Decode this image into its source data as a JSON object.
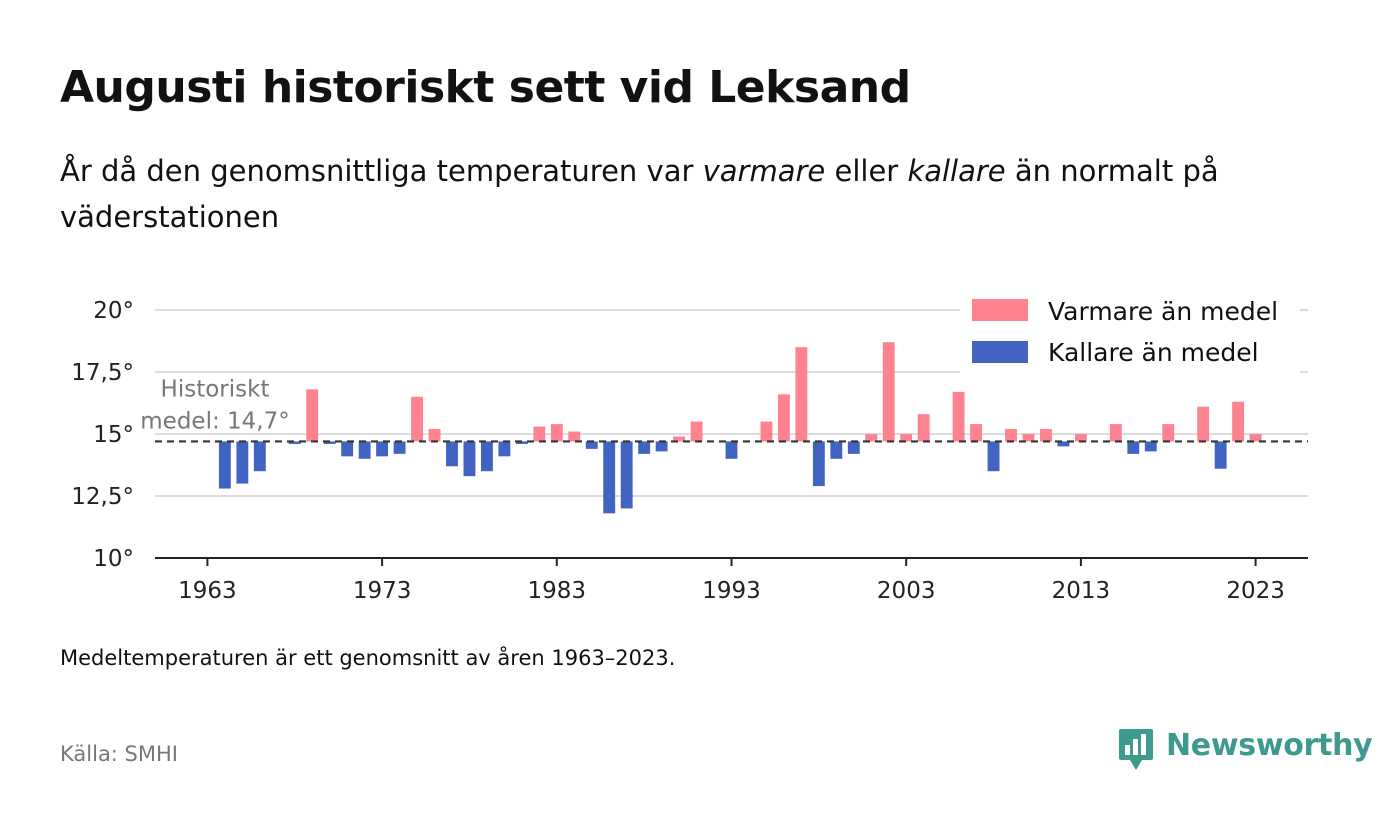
{
  "header": {
    "title": "Augusti historiskt sett vid Leksand",
    "subtitle_part1": "År då den genomsnittliga temperaturen var ",
    "subtitle_em1": "varmare",
    "subtitle_part2": " eller ",
    "subtitle_em2": "kallare",
    "subtitle_part3": " än normalt på väderstationen"
  },
  "chart_data": {
    "type": "bar",
    "baseline": 14.7,
    "ylim": [
      10,
      20
    ],
    "yticks": [
      10,
      12.5,
      15,
      17.5,
      20
    ],
    "ytick_labels": [
      "10°",
      "12,5°",
      "15°",
      "17,5°",
      "20°"
    ],
    "xticks": [
      1963,
      1973,
      1983,
      1993,
      2003,
      2013,
      2023
    ],
    "x_range": [
      1960,
      2026
    ],
    "grid": true,
    "legend_position": "top-right",
    "annotation": {
      "line1": "Historiskt",
      "line2": "medel: 14,7°"
    },
    "series": [
      {
        "name": "Varmare än medel",
        "color": "#ff8290"
      },
      {
        "name": "Kallare än medel",
        "color": "#4163c2"
      }
    ],
    "years": [
      1963,
      1964,
      1965,
      1966,
      1967,
      1968,
      1969,
      1970,
      1971,
      1972,
      1973,
      1974,
      1975,
      1976,
      1977,
      1978,
      1979,
      1980,
      1981,
      1982,
      1983,
      1984,
      1985,
      1986,
      1987,
      1988,
      1989,
      1990,
      1991,
      1992,
      1993,
      1994,
      1995,
      1996,
      1997,
      1998,
      1999,
      2000,
      2001,
      2002,
      2003,
      2004,
      2005,
      2006,
      2007,
      2008,
      2009,
      2010,
      2011,
      2012,
      2013,
      2014,
      2015,
      2016,
      2017,
      2018,
      2019,
      2020,
      2021,
      2022,
      2023
    ],
    "values": [
      14.7,
      12.8,
      13.0,
      13.5,
      14.7,
      14.6,
      16.8,
      14.6,
      14.1,
      14.0,
      14.1,
      14.2,
      16.5,
      15.2,
      13.7,
      13.3,
      13.5,
      14.1,
      14.6,
      15.3,
      15.4,
      15.1,
      14.4,
      11.8,
      12.0,
      14.2,
      14.3,
      14.9,
      15.5,
      14.7,
      14.0,
      14.7,
      15.5,
      16.6,
      18.5,
      12.9,
      14.0,
      14.2,
      15.0,
      18.7,
      15.0,
      15.8,
      14.7,
      16.7,
      15.4,
      13.5,
      15.2,
      15.0,
      15.2,
      14.5,
      15.0,
      14.7,
      15.4,
      14.2,
      14.3,
      15.4,
      14.7,
      16.1,
      13.6,
      16.3,
      15.0
    ]
  },
  "footer": {
    "note": "Medeltemperaturen är ett genomsnitt av åren 1963–2023.",
    "source": "Källa: SMHI",
    "brand": "Newsworthy"
  }
}
